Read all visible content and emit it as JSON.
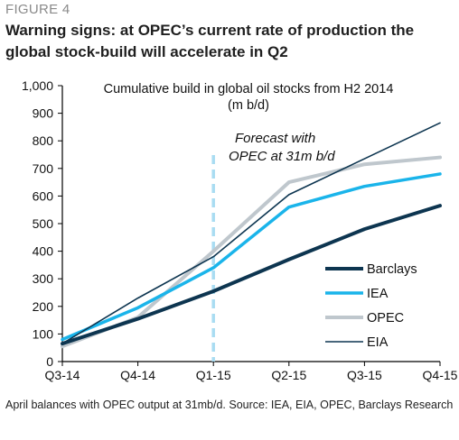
{
  "header": {
    "figure_label": "FIGURE 4",
    "title": "Warning signs: at OPEC’s current rate of production the global stock-build will accelerate in Q2"
  },
  "chart_data": {
    "type": "line",
    "title": "Cumulative build in global oil stocks from H2 2014",
    "unit": "(m b/d)",
    "categories": [
      "Q3-14",
      "Q4-14",
      "Q1-15",
      "Q2-15",
      "Q3-15",
      "Q4-15"
    ],
    "ylim": [
      0,
      1000
    ],
    "yticks": [
      0,
      100,
      200,
      300,
      400,
      500,
      600,
      700,
      800,
      900,
      1000
    ],
    "ytick_labels": [
      "0",
      "100",
      "200",
      "300",
      "400",
      "500",
      "600",
      "700",
      "800",
      "900",
      "1,000"
    ],
    "series": [
      {
        "name": "Barclays",
        "color": "#0d3550",
        "values": [
          65,
          155,
          255,
          370,
          480,
          565
        ]
      },
      {
        "name": "IEA",
        "color": "#1ab4ea",
        "values": [
          80,
          195,
          340,
          560,
          635,
          680
        ]
      },
      {
        "name": "OPEC",
        "color": "#bfc7cd",
        "values": [
          55,
          160,
          400,
          650,
          715,
          740
        ]
      },
      {
        "name": "EIA",
        "color": "#0d3550",
        "values": [
          65,
          230,
          380,
          605,
          735,
          865
        ]
      }
    ],
    "forecast_marker": {
      "at_category": "Q1-15",
      "label": "Forecast with OPEC at 31m b/d",
      "color": "#a9dcf2"
    },
    "legend_position": "bottom-right",
    "grid": false
  },
  "footer": {
    "source": "April balances with OPEC output at 31mb/d.  Source:  IEA, EIA, OPEC, Barclays Research"
  }
}
